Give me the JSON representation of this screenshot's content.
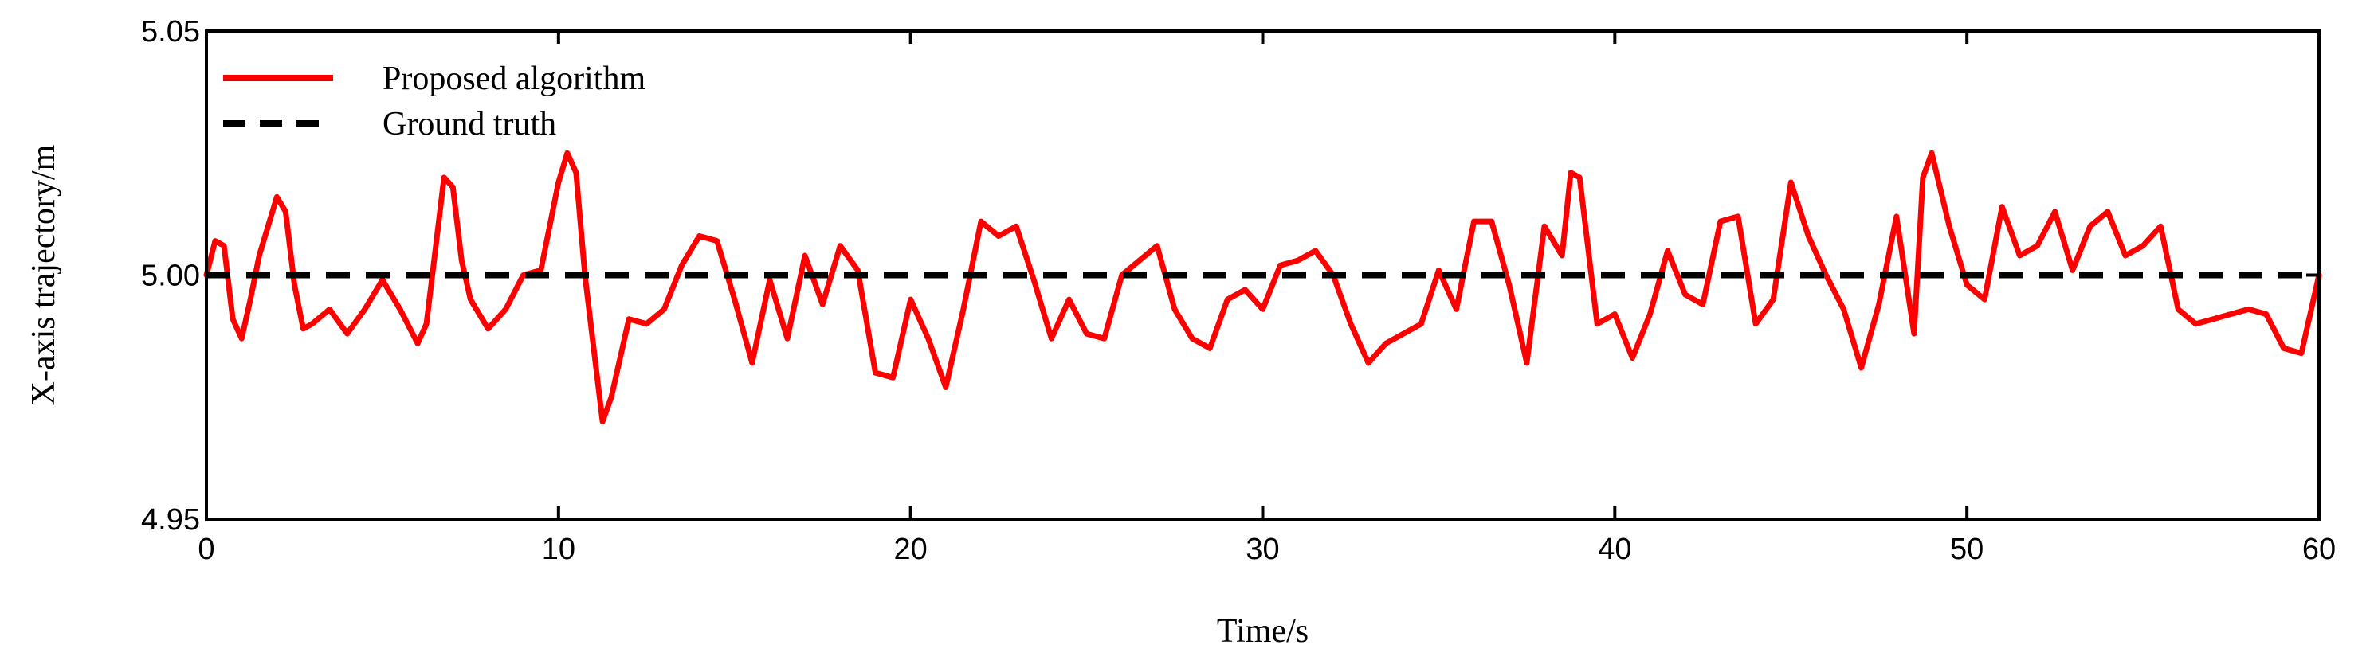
{
  "chart_data": {
    "type": "line",
    "title": "",
    "xlabel": "Time/s",
    "ylabel": "X-axis trajectory/m",
    "xlim": [
      0,
      60
    ],
    "ylim": [
      4.95,
      5.05
    ],
    "xticks": [
      0,
      10,
      20,
      30,
      40,
      50,
      60
    ],
    "xtick_labels": [
      "0",
      "10",
      "20",
      "30",
      "40",
      "50",
      "60"
    ],
    "yticks": [
      4.95,
      5.0,
      5.05
    ],
    "ytick_labels": [
      "4.95",
      "5.00",
      "5.05"
    ],
    "grid": false,
    "legend_position": "top-left",
    "series": [
      {
        "name": "Proposed algorithm",
        "color": "#ff0000",
        "style": "solid",
        "x": [
          0,
          0.25,
          0.5,
          0.75,
          1.0,
          1.25,
          1.5,
          2.0,
          2.25,
          2.5,
          2.75,
          3.0,
          3.5,
          4.0,
          4.5,
          5.0,
          5.5,
          6.0,
          6.25,
          6.5,
          6.75,
          7.0,
          7.25,
          7.5,
          8.0,
          8.5,
          9.0,
          9.5,
          10.0,
          10.25,
          10.5,
          10.75,
          11.0,
          11.25,
          11.5,
          12.0,
          12.5,
          13.0,
          13.5,
          14.0,
          14.5,
          15.0,
          15.5,
          16.0,
          16.5,
          17.0,
          17.5,
          18.0,
          18.5,
          19.0,
          19.5,
          20.0,
          20.5,
          21.0,
          21.5,
          22.0,
          22.5,
          23.0,
          23.5,
          24.0,
          24.5,
          25.0,
          25.5,
          26.0,
          26.5,
          27.0,
          27.5,
          28.0,
          28.5,
          29.0,
          29.5,
          30.0,
          30.5,
          31.0,
          31.5,
          32.0,
          32.5,
          33.0,
          33.5,
          34.0,
          34.5,
          35.0,
          35.5,
          36.0,
          36.5,
          37.0,
          37.5,
          38.0,
          38.5,
          38.75,
          39.0,
          39.5,
          40.0,
          40.5,
          41.0,
          41.5,
          42.0,
          42.5,
          43.0,
          43.5,
          44.0,
          44.5,
          45.0,
          45.5,
          46.0,
          46.5,
          47.0,
          47.5,
          48.0,
          48.5,
          48.75,
          49.0,
          49.5,
          50.0,
          50.5,
          51.0,
          51.5,
          52.0,
          52.5,
          53.0,
          53.5,
          54.0,
          54.5,
          55.0,
          55.5,
          56.0,
          56.5,
          57.0,
          57.5,
          58.0,
          58.5,
          59.0,
          59.5,
          60.0
        ],
        "y": [
          5.0,
          5.007,
          5.006,
          4.991,
          4.987,
          4.995,
          5.004,
          5.016,
          5.013,
          4.998,
          4.989,
          4.99,
          4.993,
          4.988,
          4.993,
          4.999,
          4.993,
          4.986,
          4.99,
          5.005,
          5.02,
          5.018,
          5.003,
          4.995,
          4.989,
          4.993,
          5.0,
          5.001,
          5.019,
          5.025,
          5.021,
          5.0,
          4.985,
          4.97,
          4.975,
          4.991,
          4.99,
          4.993,
          5.002,
          5.008,
          5.007,
          4.995,
          4.982,
          4.999,
          4.987,
          5.004,
          4.994,
          5.006,
          5.001,
          4.98,
          4.979,
          4.995,
          4.987,
          4.977,
          4.993,
          5.011,
          5.008,
          5.01,
          4.999,
          4.987,
          4.995,
          4.988,
          4.987,
          5.0,
          5.003,
          5.006,
          4.993,
          4.987,
          4.985,
          4.995,
          4.997,
          4.993,
          5.002,
          5.003,
          5.005,
          5.0,
          4.99,
          4.982,
          4.986,
          4.988,
          4.99,
          5.001,
          4.993,
          5.011,
          5.011,
          4.998,
          4.982,
          5.01,
          5.004,
          5.021,
          5.02,
          4.99,
          4.992,
          4.983,
          4.992,
          5.005,
          4.996,
          4.994,
          5.011,
          5.012,
          4.99,
          4.995,
          5.019,
          5.008,
          5.0,
          4.993,
          4.981,
          4.994,
          5.012,
          4.988,
          5.02,
          5.025,
          5.01,
          4.998,
          4.995,
          5.014,
          5.004,
          5.006,
          5.013,
          5.001,
          5.01,
          5.013,
          5.004,
          5.006,
          5.01,
          4.993,
          4.99,
          4.991,
          4.992,
          4.993,
          4.992,
          4.985,
          4.984,
          5.0
        ]
      },
      {
        "name": "Ground truth",
        "color": "#000000",
        "style": "dashed",
        "x": [
          0,
          60
        ],
        "y": [
          5.0,
          5.0
        ]
      }
    ]
  }
}
